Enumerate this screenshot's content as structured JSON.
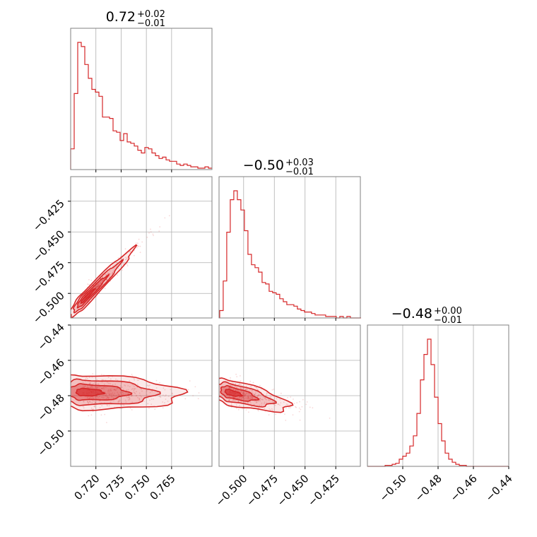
{
  "chart_data": {
    "type": "corner",
    "color": "#d62728",
    "parameters": [
      {
        "title_main": "0.72",
        "title_sup": "+0.02",
        "title_sub": "−0.01",
        "range": [
          0.705,
          0.789
        ],
        "ticks": [
          0.72,
          0.735,
          0.75,
          0.765
        ],
        "tick_labels": [
          "0.720",
          "0.735",
          "0.750",
          "0.765"
        ],
        "histogram": {
          "bin_start": 0.705,
          "bin_width": 0.0021,
          "counts": [
            15,
            55,
            92,
            89,
            76,
            66,
            58,
            56,
            53,
            38,
            38,
            37,
            28,
            27,
            21,
            26,
            20,
            19,
            17,
            14,
            12,
            16,
            15,
            12,
            10,
            8,
            9,
            7,
            6,
            6,
            4,
            3,
            4,
            3,
            2,
            2,
            1,
            1,
            2,
            1
          ]
        }
      },
      {
        "title_main": "−0.50",
        "title_sup": "+0.03",
        "title_sub": "−0.01",
        "range": [
          -0.52,
          -0.405
        ],
        "ticks": [
          -0.5,
          -0.475,
          -0.45,
          -0.425
        ],
        "tick_labels": [
          "−0.500",
          "−0.475",
          "−0.450",
          "−0.425"
        ],
        "histogram": {
          "bin_start": -0.5195,
          "bin_width": 0.002875,
          "counts": [
            5,
            25,
            58,
            80,
            86,
            80,
            73,
            59,
            43,
            36,
            34,
            31,
            24,
            23,
            18,
            17,
            16,
            13,
            11,
            9,
            9,
            8,
            6,
            5,
            4,
            4,
            3,
            2,
            2,
            2,
            1,
            1,
            1,
            0,
            1,
            0,
            1,
            0,
            0,
            0
          ]
        }
      },
      {
        "title_main": "−0.48",
        "title_sup": "+0.00",
        "title_sub": "−0.01",
        "range": [
          -0.52,
          -0.44
        ],
        "ticks": [
          -0.5,
          -0.48,
          -0.46,
          -0.44
        ],
        "tick_labels": [
          "−0.50",
          "−0.48",
          "−0.46",
          "−0.44"
        ],
        "histogram": {
          "bin_start": -0.52,
          "bin_width": 0.002,
          "counts": [
            0,
            0,
            0,
            0,
            0,
            1,
            1,
            2,
            3,
            7,
            10,
            13,
            20,
            30,
            52,
            85,
            110,
            125,
            100,
            68,
            42,
            25,
            13,
            7,
            4,
            2,
            1,
            1,
            0,
            0,
            0,
            0,
            0,
            0,
            0,
            0,
            0,
            0,
            0,
            0
          ]
        }
      }
    ],
    "pairs": [
      {
        "x": 0,
        "y": 1,
        "peak": [
          0.713,
          -0.505
        ],
        "sigma": [
          0.006,
          0.009
        ],
        "rho": 0.92
      },
      {
        "x": 0,
        "y": 2,
        "peak": [
          0.712,
          -0.478
        ],
        "sigma": [
          0.012,
          0.005
        ],
        "rho": -0.05
      },
      {
        "x": 1,
        "y": 2,
        "peak": [
          -0.512,
          -0.478
        ],
        "sigma": [
          0.01,
          0.004
        ],
        "rho": -0.4
      }
    ]
  }
}
